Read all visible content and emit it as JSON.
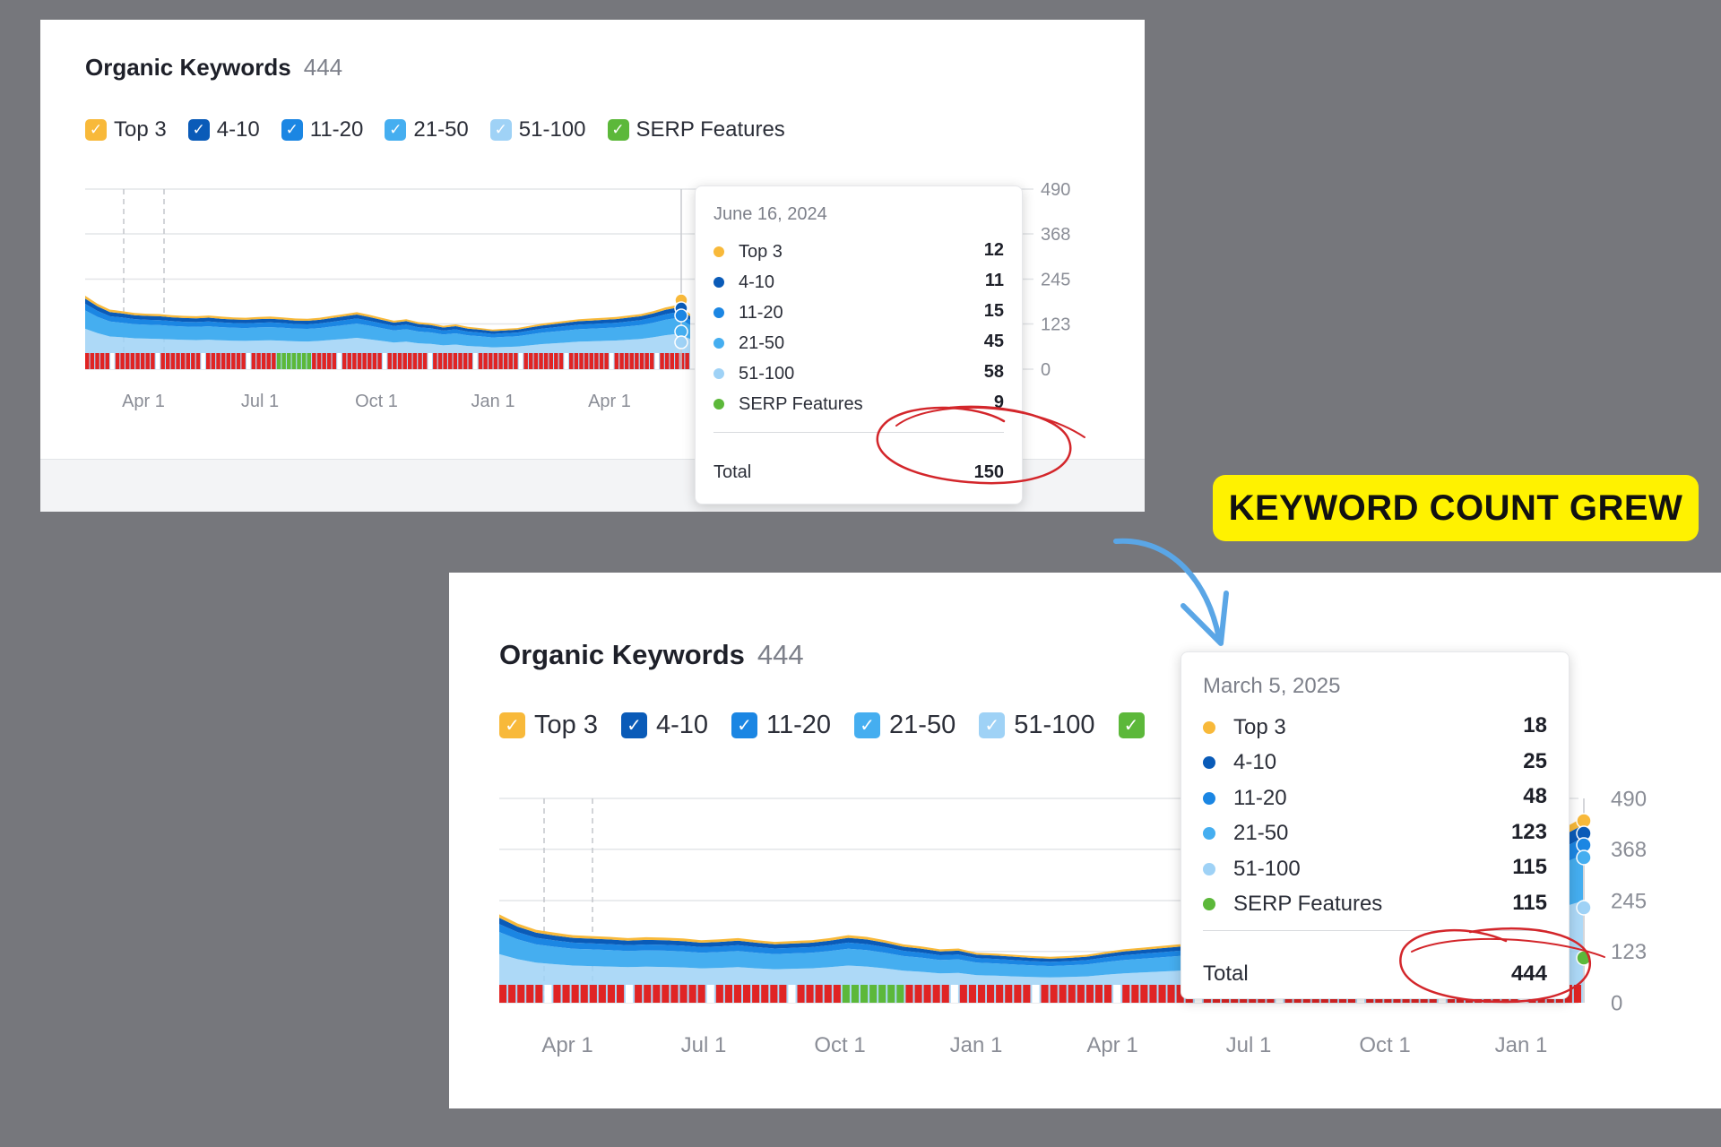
{
  "callout_text": "KEYWORD COUNT GREW",
  "colors": {
    "top3": "#f8b93a",
    "pos_4_10": "#0a5bb8",
    "pos_11_20": "#1b86e3",
    "pos_21_50": "#45aef0",
    "pos_51_100": "#9fd2f6",
    "serp": "#5cb83a",
    "callout_bg": "#fff200",
    "annotation_red": "#d3262b",
    "arrow_blue": "#5aa6e6"
  },
  "panels": [
    {
      "title": "Organic Keywords",
      "count": "444",
      "legend": [
        {
          "label": "Top 3",
          "color": "#f8b93a",
          "checked": true
        },
        {
          "label": "4-10",
          "color": "#0a5bb8",
          "checked": true
        },
        {
          "label": "11-20",
          "color": "#1b86e3",
          "checked": true
        },
        {
          "label": "21-50",
          "color": "#45aef0",
          "checked": true
        },
        {
          "label": "51-100",
          "color": "#9fd2f6",
          "checked": true
        },
        {
          "label": "SERP Features",
          "color": "#5cb83a",
          "checked": true
        }
      ],
      "tooltip": {
        "date": "June 16, 2024",
        "rows": [
          {
            "label": "Top 3",
            "value": "12",
            "color": "#f8b93a"
          },
          {
            "label": "4-10",
            "value": "11",
            "color": "#0a5bb8"
          },
          {
            "label": "11-20",
            "value": "15",
            "color": "#1b86e3"
          },
          {
            "label": "21-50",
            "value": "45",
            "color": "#45aef0"
          },
          {
            "label": "51-100",
            "value": "58",
            "color": "#9fd2f6"
          },
          {
            "label": "SERP Features",
            "value": "9",
            "color": "#5cb83a"
          }
        ],
        "total_label": "Total",
        "total_value": "150"
      }
    },
    {
      "title": "Organic Keywords",
      "count": "444",
      "legend": [
        {
          "label": "Top 3",
          "color": "#f8b93a",
          "checked": true
        },
        {
          "label": "4-10",
          "color": "#0a5bb8",
          "checked": true
        },
        {
          "label": "11-20",
          "color": "#1b86e3",
          "checked": true
        },
        {
          "label": "21-50",
          "color": "#45aef0",
          "checked": true
        },
        {
          "label": "51-100",
          "color": "#9fd2f6",
          "checked": true
        },
        {
          "label": "",
          "color": "#5cb83a",
          "checked": true
        }
      ],
      "tooltip": {
        "date": "March 5, 2025",
        "rows": [
          {
            "label": "Top 3",
            "value": "18",
            "color": "#f8b93a"
          },
          {
            "label": "4-10",
            "value": "25",
            "color": "#0a5bb8"
          },
          {
            "label": "11-20",
            "value": "48",
            "color": "#1b86e3"
          },
          {
            "label": "21-50",
            "value": "123",
            "color": "#45aef0"
          },
          {
            "label": "51-100",
            "value": "115",
            "color": "#9fd2f6"
          },
          {
            "label": "SERP Features",
            "value": "115",
            "color": "#5cb83a"
          }
        ],
        "total_label": "Total",
        "total_value": "444"
      }
    }
  ],
  "chart_data": [
    {
      "type": "area",
      "stacked": true,
      "title": "Organic Keywords",
      "y_ticks": [
        "490",
        "368",
        "245",
        "123",
        "0"
      ],
      "ylim": [
        0,
        490
      ],
      "x_tick_labels": [
        "Apr 1",
        "Jul 1",
        "Oct 1",
        "Jan 1",
        "Apr 1"
      ],
      "grid": true,
      "series_order": [
        "51-100",
        "21-50",
        "11-20",
        "4-10",
        "Top 3"
      ],
      "totals": [
        200,
        178,
        162,
        158,
        153,
        151,
        150,
        147,
        145,
        144,
        146,
        143,
        141,
        140,
        142,
        143,
        141,
        138,
        137,
        140,
        145,
        150,
        155,
        148,
        140,
        132,
        136,
        128,
        125,
        118,
        122,
        115,
        112,
        108,
        110,
        112,
        118,
        124,
        128,
        132,
        136,
        138,
        140,
        142,
        146,
        150,
        158,
        168,
        175,
        150
      ],
      "tooltip_date": "June 16, 2024",
      "tooltip_values": {
        "Top 3": 12,
        "4-10": 11,
        "11-20": 15,
        "21-50": 45,
        "51-100": 58,
        "SERP Features": 9,
        "Total": 150
      }
    },
    {
      "type": "area",
      "stacked": true,
      "title": "Organic Keywords",
      "y_ticks": [
        "490",
        "368",
        "245",
        "123",
        "0"
      ],
      "ylim": [
        0,
        490
      ],
      "x_tick_labels": [
        "Apr 1",
        "Jul 1",
        "Oct 1",
        "Jan 1",
        "Apr 1",
        "Jul 1",
        "Oct 1",
        "Jan 1"
      ],
      "grid": true,
      "series_order": [
        "51-100",
        "21-50",
        "11-20",
        "4-10",
        "Top 3"
      ],
      "totals": [
        212,
        190,
        175,
        168,
        162,
        160,
        158,
        155,
        157,
        156,
        154,
        150,
        152,
        155,
        150,
        146,
        148,
        150,
        155,
        162,
        158,
        150,
        140,
        135,
        128,
        130,
        120,
        118,
        115,
        112,
        110,
        112,
        115,
        122,
        128,
        132,
        136,
        140,
        142,
        145,
        150,
        155,
        160,
        166,
        172,
        176,
        180,
        184,
        190,
        200,
        215,
        230,
        245,
        265,
        290,
        320,
        355,
        390,
        420,
        444
      ],
      "tooltip_date": "March 5, 2025",
      "tooltip_values": {
        "Top 3": 18,
        "4-10": 25,
        "11-20": 48,
        "21-50": 123,
        "51-100": 115,
        "SERP Features": 115,
        "Total": 444
      }
    }
  ]
}
